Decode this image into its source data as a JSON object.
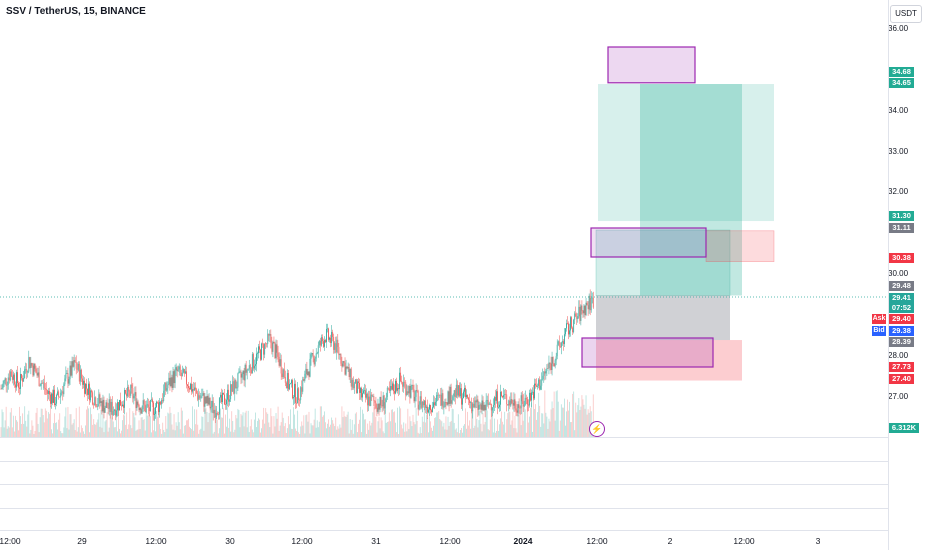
{
  "header": {
    "symbol": "SSV / TetherUS, 15, BINANCE",
    "currency": "USDT"
  },
  "colors": {
    "up": "#26a69a",
    "down": "#ef5350",
    "target": "#22ab94",
    "stop": "#f23645",
    "box": "#9c27b0",
    "ask": "#f23645",
    "bid": "#2962ff",
    "neutral": "#787b86",
    "last": "#26a69a"
  },
  "price_axis": [
    "36.00",
    "34.00",
    "33.00",
    "32.00",
    "30.00",
    "28.00",
    "27.00"
  ],
  "price_tags": {
    "t1": "34.68",
    "t2": "34.65",
    "t3": "31.30",
    "t4": "31.11",
    "t5": "30.38",
    "t6": "29.48",
    "t7": "29.41",
    "countdown": "07:52",
    "ask": "29.40",
    "bid": "29.38",
    "t8": "28.39",
    "t9": "27.73",
    "t10": "27.40",
    "ask_label": "Ask",
    "bid_label": "Bid"
  },
  "volume_tag": "6.312K",
  "time_axis": [
    "12:00",
    "29",
    "12:00",
    "30",
    "12:00",
    "31",
    "12:00",
    "2024",
    "12:00",
    "2",
    "12:00",
    "3"
  ],
  "bolt_icon": "⚡",
  "chart_data": {
    "type": "candlestick",
    "title": "SSV / TetherUS, 15, BINANCE",
    "ylim": [
      26.0,
      36.5
    ],
    "x_ticks": [
      "12:00",
      "29",
      "12:00",
      "30",
      "12:00",
      "31",
      "12:00",
      "2024",
      "12:00",
      "2",
      "12:00",
      "3"
    ],
    "close_series": [
      27.2,
      27.6,
      27.3,
      27.9,
      27.5,
      27.1,
      26.9,
      27.4,
      27.8,
      27.3,
      27.0,
      26.8,
      26.7,
      26.9,
      27.1,
      26.8,
      26.7,
      26.8,
      27.3,
      27.6,
      27.4,
      27.1,
      26.9,
      26.7,
      26.9,
      27.2,
      27.5,
      27.8,
      28.1,
      28.4,
      27.9,
      27.3,
      27.0,
      27.6,
      28.1,
      28.5,
      28.3,
      27.8,
      27.3,
      27.0,
      26.9,
      26.8,
      27.1,
      27.4,
      27.2,
      26.9,
      26.8,
      26.9,
      27.0,
      27.1,
      27.0,
      26.8,
      26.7,
      26.9,
      27.0,
      26.9,
      26.8,
      27.0,
      27.3,
      27.7,
      28.1,
      28.6,
      28.9,
      29.2,
      29.4
    ],
    "trade_levels": {
      "target_high": 34.68,
      "target": 34.65,
      "zone_top": 31.3,
      "zone_mid": 31.11,
      "stop_zone": 30.38,
      "entry": 29.48,
      "last": 29.41,
      "ask": 29.4,
      "bid": 29.38,
      "level_low": 28.39,
      "stop": 27.73,
      "stop_low": 27.4
    },
    "volume_last": "6.312K"
  }
}
